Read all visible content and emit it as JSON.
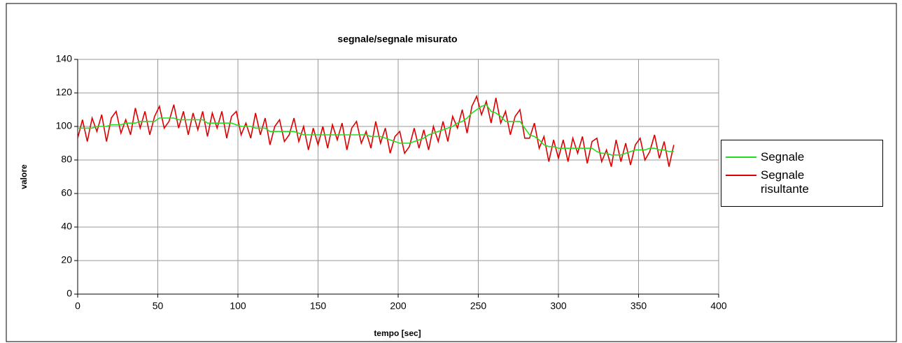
{
  "chart_data": {
    "type": "line",
    "title": "segnale/segnale misurato",
    "x_label": "tempo [sec]",
    "y_label": "valore",
    "x": [
      0,
      3,
      6,
      9,
      12,
      15,
      18,
      21,
      24,
      27,
      30,
      33,
      36,
      39,
      42,
      45,
      48,
      51,
      54,
      57,
      60,
      63,
      66,
      69,
      72,
      75,
      78,
      81,
      84,
      87,
      90,
      93,
      96,
      99,
      102,
      105,
      108,
      111,
      114,
      117,
      120,
      123,
      126,
      129,
      132,
      135,
      138,
      141,
      144,
      147,
      150,
      153,
      156,
      159,
      162,
      165,
      168,
      171,
      174,
      177,
      180,
      183,
      186,
      189,
      192,
      195,
      198,
      201,
      204,
      207,
      210,
      213,
      216,
      219,
      222,
      225,
      228,
      231,
      234,
      237,
      240,
      243,
      246,
      249,
      252,
      255,
      258,
      261,
      264,
      267,
      270,
      273,
      276,
      279,
      282,
      285,
      288,
      291,
      294,
      297,
      300,
      303,
      306,
      309,
      312,
      315,
      318,
      321,
      324,
      327,
      330,
      333,
      336,
      339,
      342,
      345,
      348,
      351,
      354,
      357,
      360,
      363,
      366,
      369,
      372
    ],
    "series": [
      {
        "name": "Segnale",
        "color": "#22dd22",
        "values": [
          99,
          99,
          99,
          99,
          100,
          100,
          100,
          101,
          101,
          101,
          102,
          102,
          102,
          103,
          103,
          103,
          103,
          105,
          105,
          105,
          105,
          104,
          104,
          104,
          104,
          104,
          104,
          102,
          102,
          102,
          102,
          102,
          102,
          101,
          100,
          100,
          100,
          99,
          99,
          99,
          97,
          97,
          97,
          97,
          97,
          97,
          96,
          95,
          95,
          95,
          95,
          95,
          95,
          95,
          95,
          95,
          95,
          95,
          95,
          95,
          95,
          94,
          94,
          94,
          93,
          92,
          91,
          90,
          90,
          90,
          91,
          92,
          93,
          95,
          96,
          97,
          98,
          99,
          100,
          102,
          103,
          105,
          108,
          110,
          112,
          113,
          109,
          108,
          106,
          103,
          103,
          103,
          103,
          99,
          95,
          94,
          92,
          89,
          88,
          88,
          87,
          87,
          87,
          87,
          87,
          87,
          87,
          87,
          85,
          84,
          84,
          83,
          83,
          83,
          84,
          85,
          86,
          86,
          86,
          87,
          87,
          86,
          86,
          85,
          85
        ]
      },
      {
        "name": "Segnale risultante",
        "color": "#dd0000",
        "values": [
          93,
          104,
          91,
          105,
          97,
          107,
          91,
          105,
          109,
          96,
          104,
          95,
          111,
          99,
          109,
          95,
          106,
          112,
          99,
          103,
          113,
          99,
          109,
          95,
          108,
          98,
          109,
          94,
          108,
          99,
          109,
          93,
          106,
          109,
          95,
          102,
          93,
          108,
          95,
          105,
          89,
          100,
          104,
          91,
          95,
          105,
          91,
          100,
          86,
          99,
          89,
          100,
          87,
          101,
          92,
          102,
          86,
          99,
          103,
          90,
          97,
          87,
          103,
          90,
          99,
          84,
          94,
          97,
          84,
          88,
          99,
          87,
          98,
          86,
          100,
          91,
          103,
          91,
          106,
          99,
          110,
          96,
          112,
          118,
          107,
          115,
          102,
          117,
          102,
          109,
          95,
          106,
          110,
          93,
          93,
          102,
          87,
          94,
          79,
          92,
          81,
          92,
          79,
          93,
          84,
          94,
          78,
          91,
          93,
          79,
          86,
          76,
          92,
          79,
          90,
          77,
          89,
          93,
          80,
          85,
          95,
          81,
          91,
          76,
          89
        ]
      }
    ],
    "xlim": [
      0,
      400
    ],
    "xticks": [
      0,
      50,
      100,
      150,
      200,
      250,
      300,
      350,
      400
    ],
    "ylim": [
      0,
      140
    ],
    "yticks": [
      0,
      20,
      40,
      60,
      80,
      100,
      120,
      140
    ],
    "grid": true,
    "legend": "right"
  }
}
